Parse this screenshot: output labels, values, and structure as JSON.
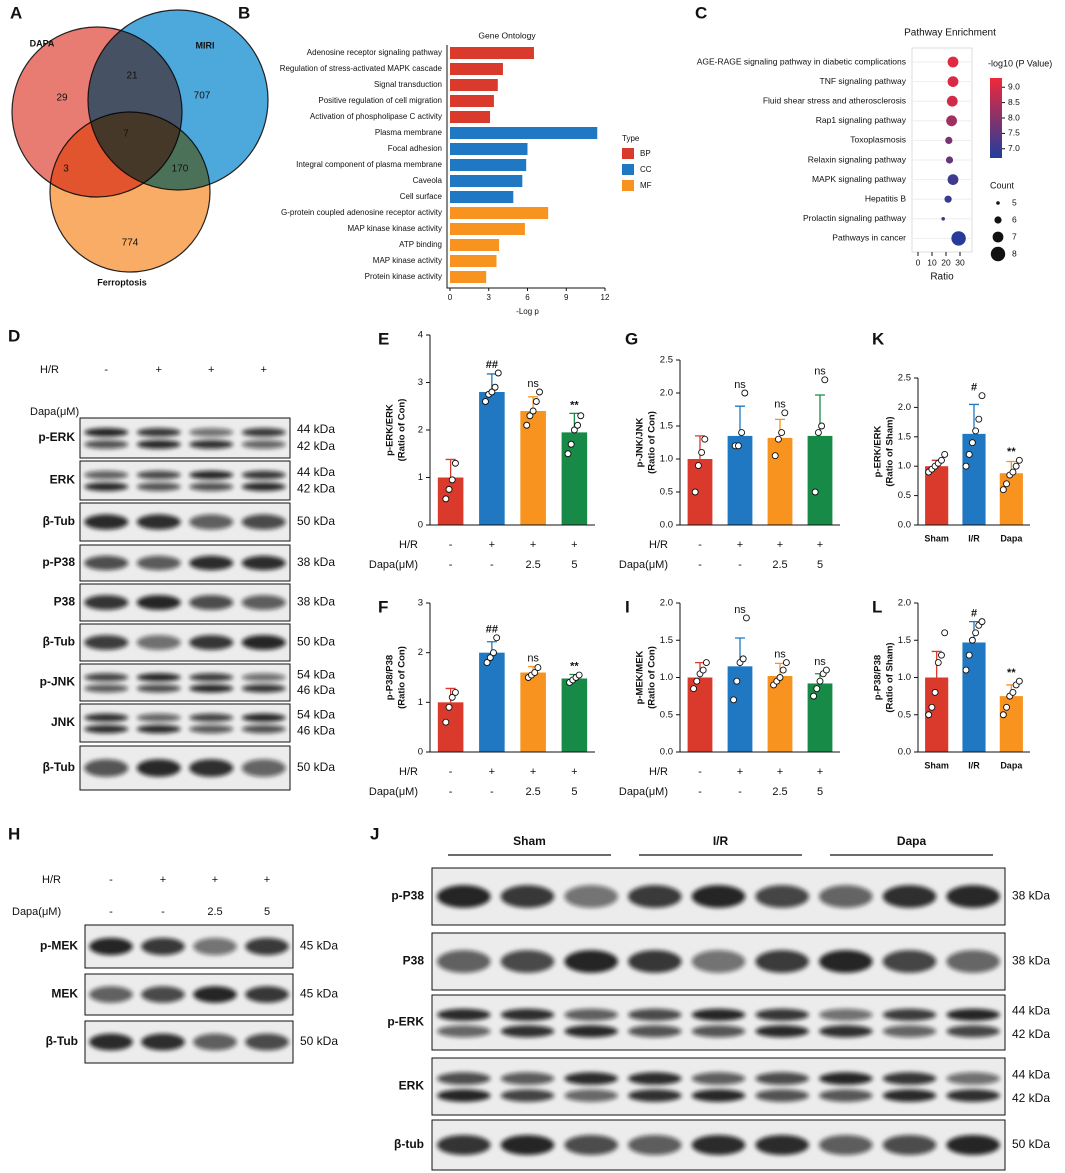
{
  "chart_data": [
    {
      "panel": "A",
      "type": "venn",
      "sets": [
        {
          "name": "DAPA",
          "color": "#e2574c"
        },
        {
          "name": "MIRI",
          "color": "#1b8fd2"
        },
        {
          "name": "Ferroptosis",
          "color": "#f7953b"
        }
      ],
      "values": [
        29,
        21,
        707,
        7,
        3,
        170,
        774
      ]
    },
    {
      "panel": "B",
      "type": "hbar",
      "title": "Gene Ontology",
      "categories": [
        "Adenosine receptor signaling pathway",
        "Regulation of stress-activated MAPK cascade",
        "Signal transduction",
        "Positive regulation of cell migration",
        "Activation of phospholipase C activity",
        "Plasma membrane",
        "Focal adhesion",
        "Integral component of plasma membrane",
        "Caveola",
        "Cell surface",
        "G-protein coupled adenosine receptor activity",
        "MAP kinase kinase activity",
        "ATP binding",
        "MAP kinase activity",
        "Protein kinase activity"
      ],
      "series": [
        {
          "name": "BP",
          "color": "#d93a2b",
          "values": [
            6.5,
            4.1,
            3.7,
            3.4,
            3.1,
            null,
            null,
            null,
            null,
            null,
            null,
            null,
            null,
            null,
            null
          ]
        },
        {
          "name": "CC",
          "color": "#1f78c1",
          "values": [
            null,
            null,
            null,
            null,
            null,
            11.4,
            6.0,
            5.9,
            5.6,
            4.9,
            null,
            null,
            null,
            null,
            null
          ]
        },
        {
          "name": "MF",
          "color": "#f7931e",
          "values": [
            null,
            null,
            null,
            null,
            null,
            null,
            null,
            null,
            null,
            null,
            7.6,
            5.8,
            3.8,
            3.6,
            2.8
          ]
        }
      ],
      "xlabel": "-Log p",
      "xlim": [
        0,
        12
      ],
      "xticks": [
        0,
        3,
        6,
        9,
        12
      ],
      "legend_title": "Type"
    },
    {
      "panel": "C",
      "type": "bubble",
      "title": "Pathway Enrichment",
      "categories": [
        "AGE-RAGE signaling pathway in diabetic complications",
        "TNF signaling pathway",
        "Fluid shear stress and atherosclerosis",
        "Rap1 signaling pathway",
        "Toxoplasmosis",
        "Relaxin signaling pathway",
        "MAPK signaling pathway",
        "Hepatitis B",
        "Prolactin signaling pathway",
        "Pathways in cancer"
      ],
      "values": [
        25,
        25,
        24.5,
        24,
        22,
        22.5,
        25,
        21.5,
        18,
        29
      ],
      "counts": [
        7,
        7,
        7,
        7,
        6,
        6,
        7,
        6,
        5,
        8
      ],
      "pvalues": [
        9.1,
        9.0,
        8.9,
        8.3,
        7.8,
        7.6,
        7.1,
        7.0,
        7.0,
        6.8
      ],
      "xlabel": "Ratio",
      "xlim": [
        0,
        35
      ],
      "xticks": [
        0,
        10,
        20,
        30
      ],
      "color_title": "-log10 (P Value)",
      "color_lim": [
        6.7,
        9.3
      ],
      "colormap": [
        "#1f3d9c",
        "#f0283a"
      ],
      "color_ticks": [
        {
          "value": 7,
          "label": "7.0"
        },
        7.5,
        {
          "value": 8,
          "label": "8.0"
        },
        8.5,
        {
          "value": 9,
          "label": "9.0"
        }
      ],
      "size_title": "Count",
      "size_ticks": [
        5,
        6,
        7,
        8
      ]
    },
    {
      "panel": "E",
      "type": "bar",
      "ylabel": [
        "p-ERK/ERK",
        "(Ratio of Con)"
      ],
      "rows": [
        {
          "label": "H/R",
          "values": [
            "-",
            "+",
            "+",
            "+"
          ]
        },
        {
          "label": "Dapa(μM)",
          "values": [
            "-",
            "-",
            "2.5",
            "5"
          ]
        }
      ],
      "colors": [
        "#d93a2b",
        "#1f78c1",
        "#f7931e",
        "#178a47"
      ],
      "values": [
        1.0,
        2.8,
        2.4,
        1.95
      ],
      "errors": [
        0.38,
        0.38,
        0.3,
        0.4
      ],
      "points": [
        [
          0.55,
          0.75,
          0.95,
          1.3
        ],
        [
          2.6,
          2.75,
          2.8,
          2.9,
          3.2
        ],
        [
          2.1,
          2.3,
          2.4,
          2.6,
          2.8
        ],
        [
          1.5,
          1.7,
          2.0,
          2.1,
          2.3
        ]
      ],
      "annotations": [
        null,
        "##",
        "ns",
        "**"
      ],
      "ylim": [
        0,
        4
      ],
      "yticks": [
        0,
        1,
        2,
        3,
        4
      ]
    },
    {
      "panel": "G",
      "type": "bar",
      "ylabel": [
        "p-JNK/JNK",
        "(Ratio of Con)"
      ],
      "rows": [
        {
          "label": "H/R",
          "values": [
            "-",
            "+",
            "+",
            "+"
          ]
        },
        {
          "label": "Dapa(μM)",
          "values": [
            "-",
            "-",
            "2.5",
            "5"
          ]
        }
      ],
      "colors": [
        "#d93a2b",
        "#1f78c1",
        "#f7931e",
        "#178a47"
      ],
      "values": [
        1.0,
        1.35,
        1.32,
        1.35
      ],
      "errors": [
        0.35,
        0.45,
        0.28,
        0.62
      ],
      "points": [
        [
          0.5,
          0.9,
          1.1,
          1.3
        ],
        [
          1.2,
          1.2,
          1.4,
          2.0
        ],
        [
          1.05,
          1.3,
          1.4,
          1.7
        ],
        [
          0.5,
          1.4,
          1.5,
          2.2
        ]
      ],
      "annotations": [
        null,
        "ns",
        "ns",
        "ns"
      ],
      "ylim": [
        0,
        2.5
      ],
      "yticks": [
        {
          "value": 0,
          "label": "0.0"
        },
        0.5,
        {
          "value": 1,
          "label": "1.0"
        },
        1.5,
        {
          "value": 2,
          "label": "2.0"
        },
        2.5
      ]
    },
    {
      "panel": "K",
      "type": "bar",
      "ylabel": [
        "p-ERK/ERK",
        "(Ratio of Sham)"
      ],
      "categories": [
        "Sham",
        "I/R",
        "Dapa"
      ],
      "colors": [
        "#d93a2b",
        "#1f78c1",
        "#f7931e"
      ],
      "values": [
        1.0,
        1.55,
        0.88
      ],
      "errors": [
        0.1,
        0.5,
        0.2
      ],
      "points": [
        [
          0.9,
          0.95,
          1.0,
          1.05,
          1.1,
          1.2
        ],
        [
          1.0,
          1.2,
          1.4,
          1.6,
          1.8,
          2.2
        ],
        [
          0.6,
          0.7,
          0.85,
          0.9,
          1.0,
          1.1
        ]
      ],
      "annotations": [
        null,
        "#",
        "**"
      ],
      "ylim": [
        0,
        2.5
      ],
      "yticks": [
        {
          "value": 0,
          "label": "0.0"
        },
        0.5,
        {
          "value": 1,
          "label": "1.0"
        },
        1.5,
        {
          "value": 2,
          "label": "2.0"
        },
        2.5
      ]
    },
    {
      "panel": "F",
      "type": "bar",
      "ylabel": [
        "p-P38/P38",
        "(Ratio of Con)"
      ],
      "rows": [
        {
          "label": "H/R",
          "values": [
            "-",
            "+",
            "+",
            "+"
          ]
        },
        {
          "label": "Dapa(μM)",
          "values": [
            "-",
            "-",
            "2.5",
            "5"
          ]
        }
      ],
      "colors": [
        "#d93a2b",
        "#1f78c1",
        "#f7931e",
        "#178a47"
      ],
      "values": [
        1.0,
        2.0,
        1.6,
        1.48
      ],
      "errors": [
        0.28,
        0.22,
        0.12,
        0.08
      ],
      "points": [
        [
          0.6,
          0.9,
          1.1,
          1.2
        ],
        [
          1.8,
          1.9,
          2.0,
          2.3
        ],
        [
          1.5,
          1.55,
          1.6,
          1.7
        ],
        [
          1.4,
          1.45,
          1.5,
          1.55
        ]
      ],
      "annotations": [
        null,
        "##",
        "ns",
        "**"
      ],
      "ylim": [
        0,
        3
      ],
      "yticks": [
        0,
        1,
        2,
        3
      ]
    },
    {
      "panel": "I",
      "type": "bar",
      "ylabel": [
        "p-MEK/MEK",
        "(Ratio of Con)"
      ],
      "rows": [
        {
          "label": "H/R",
          "values": [
            "-",
            "+",
            "+",
            "+"
          ]
        },
        {
          "label": "Dapa(μM)",
          "values": [
            "-",
            "-",
            "2.5",
            "5"
          ]
        }
      ],
      "colors": [
        "#d93a2b",
        "#1f78c1",
        "#f7931e",
        "#178a47"
      ],
      "values": [
        1.0,
        1.15,
        1.02,
        0.92
      ],
      "errors": [
        0.2,
        0.38,
        0.17,
        0.13
      ],
      "points": [
        [
          0.85,
          0.95,
          1.05,
          1.1,
          1.2
        ],
        [
          0.7,
          0.95,
          1.2,
          1.25,
          1.8
        ],
        [
          0.9,
          0.95,
          1.0,
          1.1,
          1.2
        ],
        [
          0.75,
          0.85,
          0.95,
          1.05,
          1.1
        ]
      ],
      "annotations": [
        null,
        "ns",
        "ns",
        "ns"
      ],
      "ylim": [
        0,
        2
      ],
      "yticks": [
        {
          "value": 0,
          "label": "0.0"
        },
        0.5,
        {
          "value": 1,
          "label": "1.0"
        },
        1.5,
        {
          "value": 2,
          "label": "2.0"
        }
      ]
    },
    {
      "panel": "L",
      "type": "bar",
      "ylabel": [
        "p-P38/P38",
        "(Ratio of Sham)"
      ],
      "categories": [
        "Sham",
        "I/R",
        "Dapa"
      ],
      "colors": [
        "#d93a2b",
        "#1f78c1",
        "#f7931e"
      ],
      "values": [
        1.0,
        1.47,
        0.75
      ],
      "errors": [
        0.35,
        0.28,
        0.15
      ],
      "points": [
        [
          0.5,
          0.6,
          0.8,
          1.2,
          1.3,
          1.6
        ],
        [
          1.1,
          1.3,
          1.5,
          1.6,
          1.7,
          1.75
        ],
        [
          0.5,
          0.6,
          0.75,
          0.8,
          0.9,
          0.95
        ]
      ],
      "annotations": [
        null,
        "#",
        "**"
      ],
      "ylim": [
        0,
        2
      ],
      "yticks": [
        {
          "value": 0,
          "label": "0.0"
        },
        0.5,
        {
          "value": 1,
          "label": "1.0"
        },
        1.5,
        {
          "value": 2,
          "label": "2.0"
        }
      ]
    }
  ],
  "blots": [
    {
      "panel": "D",
      "conditions": [
        {
          "label": "H/R",
          "values": [
            "-",
            "+",
            "+",
            "+"
          ]
        },
        {
          "label": "Dapa(μM)"
        }
      ],
      "rows": [
        {
          "label": "p-ERK",
          "kda": [
            "44 kDa",
            "42 kDa"
          ]
        },
        {
          "label": "ERK",
          "kda": [
            "44 kDa",
            "42 kDa"
          ]
        },
        {
          "label": "β-Tub",
          "kda": [
            "50 kDa"
          ]
        },
        {
          "label": "p-P38",
          "kda": [
            "38 kDa"
          ]
        },
        {
          "label": "P38",
          "kda": [
            "38 kDa"
          ]
        },
        {
          "label": "β-Tub",
          "kda": [
            "50 kDa"
          ]
        },
        {
          "label": "p-JNK",
          "kda": [
            "54 kDa",
            "46 kDa"
          ]
        },
        {
          "label": "JNK",
          "kda": [
            "54 kDa",
            "46 kDa"
          ]
        },
        {
          "label": "β-Tub",
          "kda": [
            "50 kDa"
          ]
        }
      ]
    },
    {
      "panel": "H",
      "conditions": [
        {
          "label": "H/R",
          "values": [
            "-",
            "+",
            "+",
            "+"
          ]
        },
        {
          "label": "Dapa(μM)",
          "values": [
            "-",
            "-",
            "2.5",
            "5"
          ]
        }
      ],
      "rows": [
        {
          "label": "p-MEK",
          "kda": [
            "45 kDa"
          ]
        },
        {
          "label": "MEK",
          "kda": [
            "45 kDa"
          ]
        },
        {
          "label": "β-Tub",
          "kda": [
            "50 kDa"
          ]
        }
      ]
    },
    {
      "panel": "J",
      "groups": [
        "Sham",
        "I/R",
        "Dapa"
      ],
      "rows": [
        {
          "label": "p-P38",
          "kda": [
            "38 kDa"
          ]
        },
        {
          "label": "P38",
          "kda": [
            "38 kDa"
          ]
        },
        {
          "label": "p-ERK",
          "kda": [
            "44 kDa",
            "42 kDa"
          ]
        },
        {
          "label": "ERK",
          "kda": [
            "44 kDa",
            "42 kDa"
          ]
        },
        {
          "label": "β-tub",
          "kda": [
            "50 kDa"
          ]
        }
      ]
    }
  ]
}
